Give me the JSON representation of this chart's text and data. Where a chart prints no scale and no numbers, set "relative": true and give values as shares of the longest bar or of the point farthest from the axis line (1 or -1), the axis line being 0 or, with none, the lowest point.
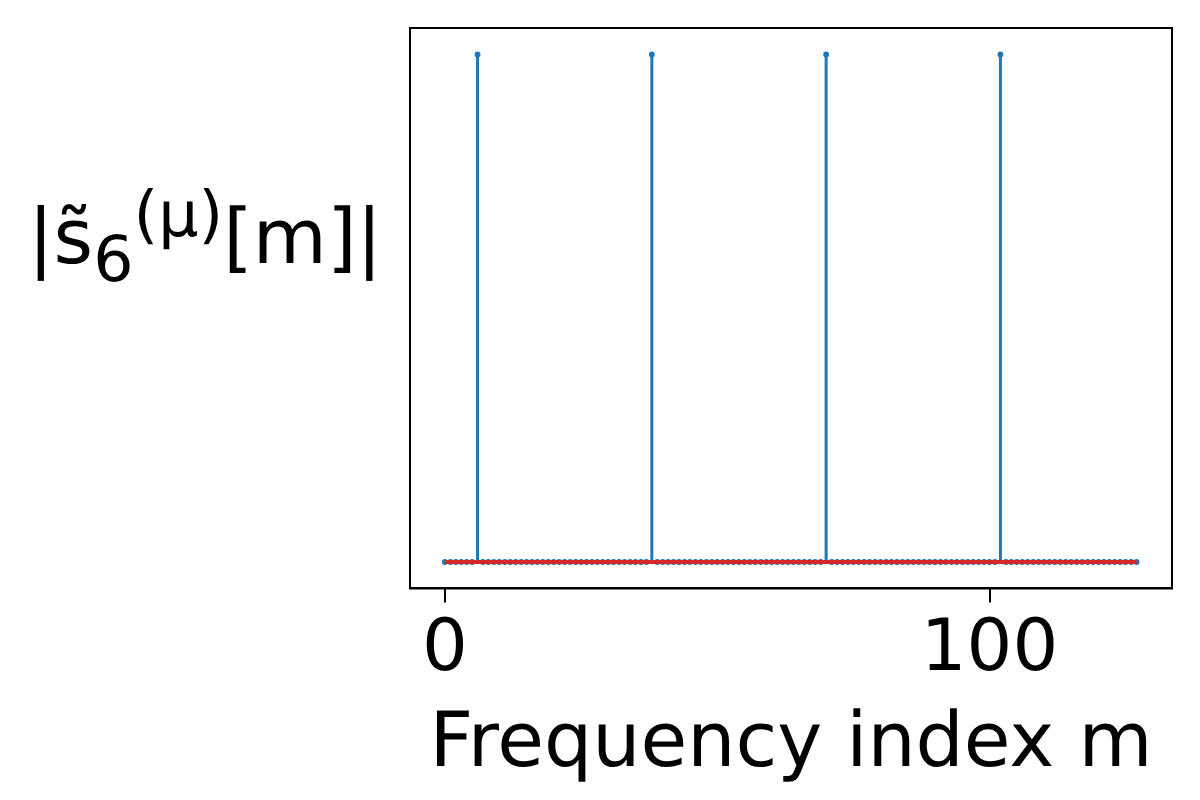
{
  "chart_data": {
    "type": "lollipop",
    "relative": true,
    "xlabel": "Frequency index m",
    "ylabel": "|s̃$_{6}$$^{(μ)}$[m]|",
    "x": [
      0,
      1,
      2,
      3,
      4,
      5,
      6,
      7,
      8,
      9,
      10,
      11,
      12,
      13,
      14,
      15,
      16,
      17,
      18,
      19,
      20,
      21,
      22,
      23,
      24,
      25,
      26,
      27,
      28,
      29,
      30,
      31,
      32,
      33,
      34,
      35,
      36,
      37,
      38,
      39,
      40,
      41,
      42,
      43,
      44,
      45,
      46,
      47,
      48,
      49,
      50,
      51,
      52,
      53,
      54,
      55,
      56,
      57,
      58,
      59,
      60,
      61,
      62,
      63,
      64,
      65,
      66,
      67,
      68,
      69,
      70,
      71,
      72,
      73,
      74,
      75,
      76,
      77,
      78,
      79,
      80,
      81,
      82,
      83,
      84,
      85,
      86,
      87,
      88,
      89,
      90,
      91,
      92,
      93,
      94,
      95,
      96,
      97,
      98,
      99,
      100,
      101,
      102,
      103,
      104,
      105,
      106,
      107,
      108,
      109,
      110,
      111,
      112,
      113,
      114,
      115,
      116,
      117,
      118,
      119,
      120,
      121,
      122,
      123,
      124,
      125,
      126,
      127
    ],
    "series": [
      {
        "color": "#1f77b4",
        "values": [
          0,
          0,
          0,
          0,
          0,
          0,
          1,
          0,
          0,
          0,
          0,
          0,
          0,
          0,
          0,
          0,
          0,
          0,
          0,
          0,
          0,
          0,
          0,
          0,
          0,
          0,
          0,
          0,
          0,
          0,
          0,
          0,
          0,
          0,
          0,
          0,
          0,
          0,
          1,
          0,
          0,
          0,
          0,
          0,
          0,
          0,
          0,
          0,
          0,
          0,
          0,
          0,
          0,
          0,
          0,
          0,
          0,
          0,
          0,
          0,
          0,
          0,
          0,
          0,
          0,
          0,
          0,
          0,
          0,
          0,
          1,
          0,
          0,
          0,
          0,
          0,
          0,
          0,
          0,
          0,
          0,
          0,
          0,
          0,
          0,
          0,
          0,
          0,
          0,
          0,
          0,
          0,
          0,
          0,
          0,
          0,
          0,
          0,
          0,
          0,
          0,
          0,
          1,
          0,
          0,
          0,
          0,
          0,
          0,
          0,
          0,
          0,
          0,
          0,
          0,
          0,
          0,
          0,
          0,
          0,
          0,
          0,
          0,
          0,
          0,
          0,
          0,
          0
        ]
      }
    ],
    "ref_lines": [
      {
        "axis": "y",
        "value": 0,
        "color": "#d62728"
      }
    ],
    "xlim": [
      -6.4,
      133.5
    ],
    "xticks": [
      0,
      100
    ],
    "marker": "circle",
    "grid": false,
    "legend": false
  }
}
